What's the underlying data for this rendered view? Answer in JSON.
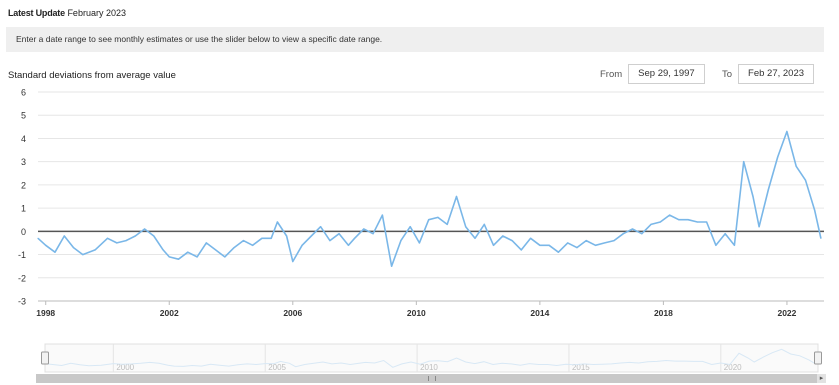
{
  "header": {
    "update_label": "Latest Update",
    "update_value": "February 2023",
    "instruction": "Enter a date range to see monthly estimates or use the slider below to view a specific date range."
  },
  "range": {
    "from_label": "From",
    "from_value": "Sep 29, 1997",
    "to_label": "To",
    "to_value": "Feb 27, 2023"
  },
  "navigator": {
    "labels": [
      "2000",
      "2005",
      "2010",
      "2015",
      "2020"
    ],
    "left_arrow": "◂",
    "right_arrow": "▸"
  },
  "colors": {
    "line": "#7ab7e8",
    "zero": "#555555",
    "grid": "#e6e6e6"
  },
  "chart_data": {
    "type": "line",
    "title": "",
    "ylabel": "Standard deviations from average value",
    "xlabel": "",
    "ylim": [
      -3,
      6
    ],
    "yticks": [
      -3,
      -2,
      -1,
      0,
      1,
      2,
      3,
      4,
      5,
      6
    ],
    "xlim": [
      1997.75,
      2023.2
    ],
    "xticks": [
      1998,
      2002,
      2006,
      2010,
      2014,
      2018,
      2022
    ],
    "xtick_labels": [
      "1998",
      "2002",
      "2006",
      "2010",
      "2014",
      "2018",
      "2022"
    ],
    "grid": true,
    "series": [
      {
        "name": "",
        "points": [
          [
            1997.75,
            -0.3
          ],
          [
            1998.0,
            -0.6
          ],
          [
            1998.3,
            -0.9
          ],
          [
            1998.6,
            -0.2
          ],
          [
            1998.9,
            -0.7
          ],
          [
            1999.2,
            -1.0
          ],
          [
            1999.6,
            -0.8
          ],
          [
            2000.0,
            -0.3
          ],
          [
            2000.3,
            -0.5
          ],
          [
            2000.6,
            -0.4
          ],
          [
            2000.9,
            -0.2
          ],
          [
            2001.2,
            0.1
          ],
          [
            2001.5,
            -0.2
          ],
          [
            2001.8,
            -0.8
          ],
          [
            2002.0,
            -1.1
          ],
          [
            2002.3,
            -1.2
          ],
          [
            2002.6,
            -0.9
          ],
          [
            2002.9,
            -1.1
          ],
          [
            2003.2,
            -0.5
          ],
          [
            2003.5,
            -0.8
          ],
          [
            2003.8,
            -1.1
          ],
          [
            2004.1,
            -0.7
          ],
          [
            2004.4,
            -0.4
          ],
          [
            2004.7,
            -0.6
          ],
          [
            2005.0,
            -0.3
          ],
          [
            2005.3,
            -0.3
          ],
          [
            2005.5,
            0.4
          ],
          [
            2005.8,
            -0.2
          ],
          [
            2006.0,
            -1.3
          ],
          [
            2006.3,
            -0.6
          ],
          [
            2006.6,
            -0.2
          ],
          [
            2006.9,
            0.2
          ],
          [
            2007.2,
            -0.4
          ],
          [
            2007.5,
            -0.1
          ],
          [
            2007.8,
            -0.6
          ],
          [
            2008.0,
            -0.3
          ],
          [
            2008.3,
            0.1
          ],
          [
            2008.6,
            -0.1
          ],
          [
            2008.9,
            0.7
          ],
          [
            2009.2,
            -1.5
          ],
          [
            2009.5,
            -0.4
          ],
          [
            2009.8,
            0.2
          ],
          [
            2010.1,
            -0.5
          ],
          [
            2010.4,
            0.5
          ],
          [
            2010.7,
            0.6
          ],
          [
            2011.0,
            0.3
          ],
          [
            2011.3,
            1.5
          ],
          [
            2011.6,
            0.2
          ],
          [
            2011.9,
            -0.3
          ],
          [
            2012.2,
            0.3
          ],
          [
            2012.5,
            -0.6
          ],
          [
            2012.8,
            -0.2
          ],
          [
            2013.1,
            -0.4
          ],
          [
            2013.4,
            -0.8
          ],
          [
            2013.7,
            -0.3
          ],
          [
            2014.0,
            -0.6
          ],
          [
            2014.3,
            -0.6
          ],
          [
            2014.6,
            -0.9
          ],
          [
            2014.9,
            -0.5
          ],
          [
            2015.2,
            -0.7
          ],
          [
            2015.5,
            -0.4
          ],
          [
            2015.8,
            -0.6
          ],
          [
            2016.1,
            -0.5
          ],
          [
            2016.4,
            -0.4
          ],
          [
            2016.7,
            -0.1
          ],
          [
            2017.0,
            0.1
          ],
          [
            2017.3,
            -0.1
          ],
          [
            2017.6,
            0.3
          ],
          [
            2017.9,
            0.4
          ],
          [
            2018.2,
            0.7
          ],
          [
            2018.5,
            0.5
          ],
          [
            2018.8,
            0.5
          ],
          [
            2019.1,
            0.4
          ],
          [
            2019.4,
            0.4
          ],
          [
            2019.7,
            -0.6
          ],
          [
            2020.0,
            -0.1
          ],
          [
            2020.3,
            -0.6
          ],
          [
            2020.6,
            3.0
          ],
          [
            2020.9,
            1.5
          ],
          [
            2021.1,
            0.2
          ],
          [
            2021.4,
            1.8
          ],
          [
            2021.7,
            3.2
          ],
          [
            2022.0,
            4.3
          ],
          [
            2022.3,
            2.8
          ],
          [
            2022.6,
            2.2
          ],
          [
            2022.9,
            0.9
          ],
          [
            2023.1,
            -0.3
          ]
        ]
      }
    ]
  }
}
